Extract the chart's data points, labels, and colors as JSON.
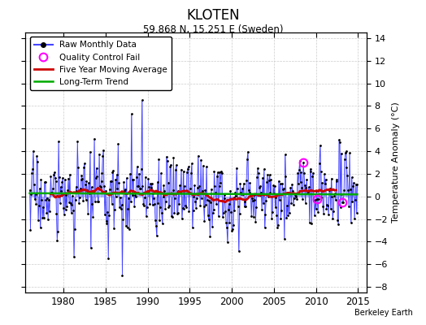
{
  "title": "KLOTEN",
  "subtitle": "59.868 N, 15.251 E (Sweden)",
  "ylabel_right": "Temperature Anomaly (°C)",
  "watermark": "Berkeley Earth",
  "xlim": [
    1975.5,
    2016.0
  ],
  "ylim": [
    -8.5,
    14.5
  ],
  "yticks": [
    -8,
    -6,
    -4,
    -2,
    0,
    2,
    4,
    6,
    8,
    10,
    12,
    14
  ],
  "xticks": [
    1980,
    1985,
    1990,
    1995,
    2000,
    2005,
    2010,
    2015
  ],
  "bg_color": "#ffffff",
  "grid_color": "#cccccc",
  "raw_line_color": "#4444ff",
  "raw_dot_color": "#000000",
  "ma_color": "#cc0000",
  "trend_color": "#00aa00",
  "qc_color": "#ff00ff",
  "seed": 17,
  "n_months": 468,
  "start_year": 1976.0,
  "end_year": 2015.0
}
